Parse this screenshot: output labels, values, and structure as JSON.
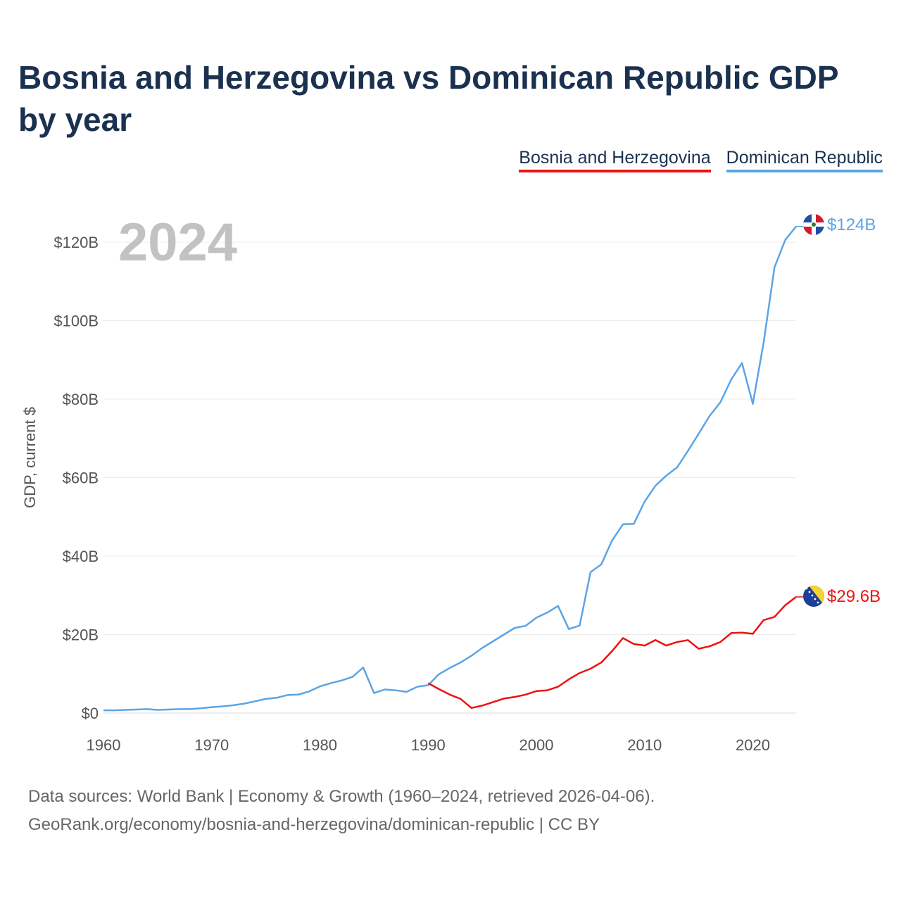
{
  "title": "Bosnia and Herzegovina vs Dominican Republic GDP by year",
  "footer": {
    "line1": "Data sources: World Bank | Economy & Growth (1960–2024, retrieved 2026-04-06).",
    "line2": "GeoRank.org/economy/bosnia-and-herzegovina/dominican-republic | CC BY"
  },
  "chart_data": {
    "type": "line",
    "year_marker": "2024",
    "ylabel": "GDP, current $",
    "xlim": [
      1960,
      2024
    ],
    "ylim": [
      0,
      130
    ],
    "x_ticks": [
      1960,
      1970,
      1980,
      1990,
      2000,
      2010,
      2020
    ],
    "x_tick_labels": [
      "1960",
      "1970",
      "1980",
      "1990",
      "2000",
      "2010",
      "2020"
    ],
    "y_ticks": [
      0,
      20,
      40,
      60,
      80,
      100,
      120
    ],
    "y_tick_labels": [
      "$0",
      "$20B",
      "$40B",
      "$60B",
      "$80B",
      "$100B",
      "$120B"
    ],
    "grid": true,
    "legend_position": "top-right",
    "series": [
      {
        "name": "Bosnia and Herzegovina",
        "color": "#ee1111",
        "end_label": "$29.6B",
        "flag_icon": "bosnia-flag-icon",
        "x": [
          1990,
          1991,
          1992,
          1993,
          1994,
          1995,
          1996,
          1997,
          1998,
          1999,
          2000,
          2001,
          2002,
          2003,
          2004,
          2005,
          2006,
          2007,
          2008,
          2009,
          2010,
          2011,
          2012,
          2013,
          2014,
          2015,
          2016,
          2017,
          2018,
          2019,
          2020,
          2021,
          2022,
          2023,
          2024
        ],
        "values": [
          7.6,
          6.1,
          4.7,
          3.6,
          1.3,
          1.9,
          2.8,
          3.7,
          4.1,
          4.7,
          5.6,
          5.8,
          6.7,
          8.6,
          10.2,
          11.3,
          12.9,
          15.8,
          19.1,
          17.6,
          17.2,
          18.6,
          17.2,
          18.1,
          18.6,
          16.4,
          17.0,
          18.1,
          20.4,
          20.5,
          20.2,
          23.7,
          24.5,
          27.5,
          29.6
        ]
      },
      {
        "name": "Dominican Republic",
        "color": "#5aa5e6",
        "end_label": "$124B",
        "flag_icon": "dominican-republic-flag-icon",
        "x": [
          1960,
          1961,
          1962,
          1963,
          1964,
          1965,
          1966,
          1967,
          1968,
          1969,
          1970,
          1971,
          1972,
          1973,
          1974,
          1975,
          1976,
          1977,
          1978,
          1979,
          1980,
          1981,
          1982,
          1983,
          1984,
          1985,
          1986,
          1987,
          1988,
          1989,
          1990,
          1991,
          1992,
          1993,
          1994,
          1995,
          1996,
          1997,
          1998,
          1999,
          2000,
          2001,
          2002,
          2003,
          2004,
          2005,
          2006,
          2007,
          2008,
          2009,
          2010,
          2011,
          2012,
          2013,
          2014,
          2015,
          2016,
          2017,
          2018,
          2019,
          2020,
          2021,
          2022,
          2023,
          2024
        ],
        "values": [
          0.7,
          0.7,
          0.8,
          0.9,
          1.0,
          0.8,
          0.9,
          1.0,
          1.0,
          1.2,
          1.5,
          1.7,
          2.0,
          2.4,
          3.0,
          3.6,
          3.9,
          4.6,
          4.7,
          5.5,
          6.8,
          7.6,
          8.3,
          9.2,
          11.6,
          5.1,
          6.0,
          5.8,
          5.4,
          6.7,
          7.1,
          9.9,
          11.5,
          12.9,
          14.6,
          16.6,
          18.3,
          20.0,
          21.7,
          22.2,
          24.3,
          25.6,
          27.3,
          21.4,
          22.3,
          35.9,
          37.9,
          44.0,
          48.1,
          48.2,
          53.9,
          57.9,
          60.5,
          62.6,
          66.8,
          71.2,
          75.7,
          79.2,
          85.0,
          89.2,
          78.8,
          94.5,
          113.6,
          120.6,
          124.0
        ]
      }
    ]
  }
}
